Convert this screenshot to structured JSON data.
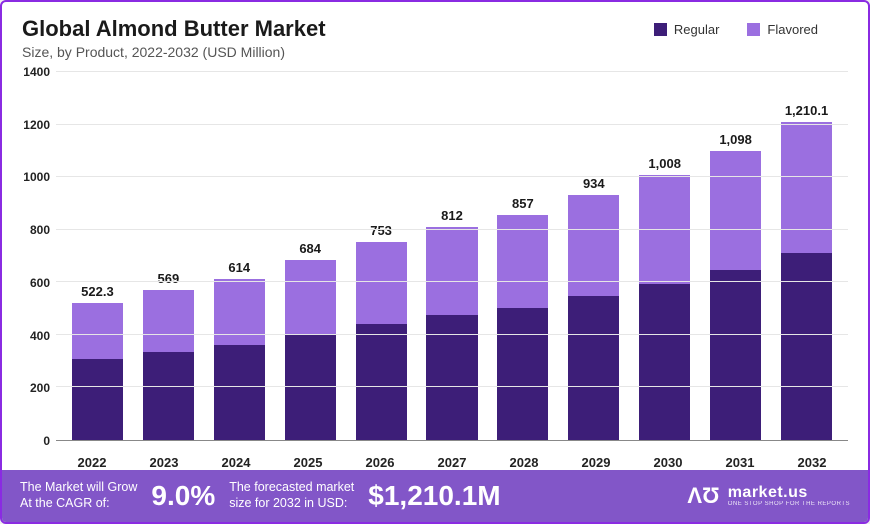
{
  "header": {
    "title": "Global Almond Butter Market",
    "subtitle": "Size, by Product, 2022-2032 (USD Million)"
  },
  "legend": {
    "items": [
      {
        "label": "Regular",
        "color": "#3d1e78"
      },
      {
        "label": "Flavored",
        "color": "#9b6fe0"
      }
    ]
  },
  "chart": {
    "type": "stacked-bar",
    "ylim": [
      0,
      1400
    ],
    "ytick_step": 200,
    "y_ticks": [
      0,
      200,
      400,
      600,
      800,
      1000,
      1200,
      1400
    ],
    "grid_color": "#e6e6e6",
    "background_color": "#ffffff",
    "tick_fontsize": 12,
    "label_fontsize": 13,
    "bar_width_pct": 72,
    "series_colors": {
      "regular": "#3d1e78",
      "flavored": "#9b6fe0"
    },
    "categories": [
      "2022",
      "2023",
      "2024",
      "2025",
      "2026",
      "2027",
      "2028",
      "2029",
      "2030",
      "2031",
      "2032"
    ],
    "bars": [
      {
        "total_label": "522.3",
        "total": 522.3,
        "regular": 307,
        "flavored": 215.3
      },
      {
        "total_label": "569",
        "total": 569,
        "regular": 334,
        "flavored": 235
      },
      {
        "total_label": "614",
        "total": 614,
        "regular": 361,
        "flavored": 253
      },
      {
        "total_label": "684",
        "total": 684,
        "regular": 402,
        "flavored": 282
      },
      {
        "total_label": "753",
        "total": 753,
        "regular": 442,
        "flavored": 311
      },
      {
        "total_label": "812",
        "total": 812,
        "regular": 477,
        "flavored": 335
      },
      {
        "total_label": "857",
        "total": 857,
        "regular": 503,
        "flavored": 354
      },
      {
        "total_label": "934",
        "total": 934,
        "regular": 549,
        "flavored": 385
      },
      {
        "total_label": "1,008",
        "total": 1008,
        "regular": 592,
        "flavored": 416
      },
      {
        "total_label": "1,098",
        "total": 1098,
        "regular": 645,
        "flavored": 453
      },
      {
        "total_label": "1,210.1",
        "total": 1210.1,
        "regular": 711,
        "flavored": 499.1
      }
    ]
  },
  "footer": {
    "background_color": "#8256c8",
    "cagr_label": "The Market will Grow\nAt the CAGR of:",
    "cagr_value": "9.0%",
    "forecast_label": "The forecasted market\nsize for 2032 in USD:",
    "forecast_value": "$1,210.1M",
    "brand_main": "market.us",
    "brand_sub": "ONE STOP SHOP FOR THE REPORTS"
  }
}
